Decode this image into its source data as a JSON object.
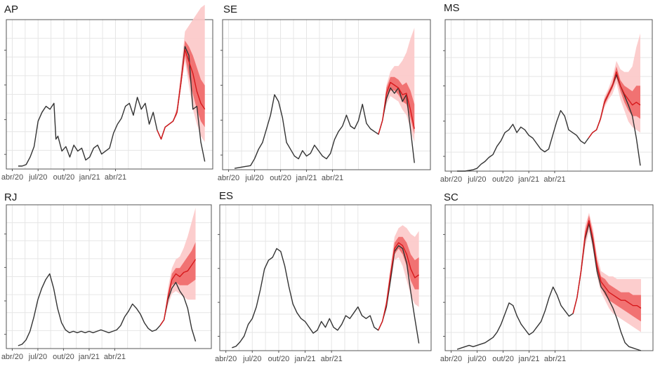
{
  "chart_data": [
    {
      "type": "line",
      "title": "AP",
      "x_ticks": [
        "abr/20",
        "jul/20",
        "out/20",
        "jan/21",
        "abr/21"
      ],
      "observed": {
        "x": [
          0,
          2,
          4,
          6,
          8,
          10,
          12,
          14,
          16,
          18,
          19,
          20,
          22,
          24,
          26,
          28,
          30,
          32,
          34,
          36,
          38,
          40,
          42,
          44,
          46,
          48,
          50,
          52,
          54,
          56,
          58,
          60,
          62,
          64,
          66,
          68,
          70,
          72,
          74,
          76,
          78,
          80,
          82,
          84,
          86,
          88,
          90,
          92,
          94
        ],
        "y": [
          2,
          2,
          3,
          8,
          15,
          32,
          38,
          42,
          40,
          44,
          20,
          22,
          12,
          15,
          8,
          16,
          12,
          14,
          6,
          8,
          14,
          16,
          10,
          12,
          14,
          24,
          30,
          34,
          42,
          44,
          36,
          48,
          40,
          44,
          30,
          38,
          26,
          20,
          28,
          30,
          32,
          38,
          58,
          82,
          76,
          40,
          42,
          18,
          5
        ]
      },
      "nowcast": {
        "x": [
          70,
          72,
          74,
          76,
          78,
          80,
          82,
          84,
          86,
          88,
          90,
          92,
          94
        ],
        "median": [
          26,
          20,
          28,
          30,
          32,
          38,
          58,
          80,
          72,
          64,
          52,
          44,
          40
        ],
        "lower_50": [
          26,
          20,
          28,
          30,
          32,
          38,
          56,
          76,
          62,
          50,
          40,
          32,
          28
        ],
        "upper_50": [
          26,
          20,
          28,
          30,
          32,
          40,
          62,
          86,
          82,
          76,
          68,
          60,
          56
        ],
        "lower_95": [
          26,
          20,
          28,
          30,
          32,
          36,
          54,
          72,
          56,
          40,
          30,
          22,
          18
        ],
        "upper_95": [
          26,
          20,
          28,
          30,
          32,
          42,
          66,
          92,
          96,
          100,
          104,
          108,
          110
        ]
      },
      "ylim": [
        0,
        100
      ]
    },
    {
      "type": "line",
      "title": "SE",
      "x_ticks": [
        "abr/20",
        "jul/20",
        "out/20",
        "jan/21",
        "abr/21"
      ],
      "observed": {
        "x": [
          0,
          4,
          8,
          10,
          12,
          14,
          16,
          18,
          20,
          22,
          24,
          26,
          28,
          30,
          32,
          34,
          36,
          38,
          40,
          42,
          44,
          46,
          48,
          50,
          52,
          54,
          56,
          58,
          60,
          62,
          64,
          66,
          68,
          70,
          72,
          74,
          76,
          78,
          80,
          82,
          84,
          86,
          88,
          90
        ],
        "y": [
          1,
          2,
          3,
          8,
          15,
          20,
          30,
          40,
          55,
          50,
          38,
          20,
          15,
          10,
          8,
          14,
          10,
          12,
          18,
          14,
          10,
          8,
          12,
          22,
          28,
          32,
          40,
          32,
          30,
          36,
          48,
          34,
          30,
          28,
          26,
          36,
          52,
          60,
          56,
          60,
          50,
          55,
          30,
          5
        ]
      },
      "nowcast": {
        "x": [
          72,
          74,
          76,
          78,
          80,
          82,
          84,
          86,
          88,
          90
        ],
        "median": [
          26,
          36,
          56,
          64,
          62,
          60,
          55,
          56,
          44,
          30
        ],
        "lower_50": [
          26,
          36,
          52,
          58,
          58,
          55,
          50,
          48,
          38,
          26
        ],
        "upper_50": [
          26,
          36,
          60,
          68,
          68,
          66,
          62,
          64,
          58,
          48
        ],
        "lower_95": [
          26,
          36,
          48,
          54,
          52,
          50,
          44,
          40,
          30,
          20
        ],
        "upper_95": [
          26,
          36,
          62,
          72,
          76,
          76,
          80,
          86,
          96,
          104
        ]
      },
      "ylim": [
        0,
        110
      ]
    },
    {
      "type": "line",
      "title": "MS",
      "x_ticks": [
        "abr/20",
        "jul/20",
        "out/20",
        "jan/21",
        "abr/21"
      ],
      "observed": {
        "x": [
          0,
          4,
          8,
          10,
          12,
          14,
          16,
          18,
          20,
          22,
          24,
          26,
          28,
          30,
          32,
          34,
          36,
          38,
          40,
          42,
          44,
          46,
          48,
          50,
          52,
          54,
          56,
          58,
          60,
          62,
          64,
          66,
          68,
          70,
          72,
          74,
          76,
          78,
          80,
          82,
          84,
          86,
          88,
          90,
          92
        ],
        "y": [
          0,
          0,
          1,
          2,
          5,
          7,
          10,
          12,
          18,
          22,
          28,
          30,
          34,
          28,
          32,
          30,
          26,
          24,
          20,
          16,
          14,
          16,
          26,
          36,
          44,
          40,
          30,
          28,
          26,
          22,
          20,
          24,
          28,
          30,
          38,
          50,
          56,
          62,
          70,
          62,
          55,
          48,
          40,
          24,
          4
        ]
      },
      "nowcast": {
        "x": [
          66,
          68,
          70,
          72,
          74,
          76,
          78,
          80,
          82,
          84,
          86,
          88,
          90,
          92
        ],
        "median": [
          24,
          28,
          30,
          38,
          50,
          56,
          62,
          72,
          62,
          56,
          52,
          48,
          50,
          48
        ],
        "lower_50": [
          24,
          28,
          30,
          38,
          48,
          54,
          60,
          68,
          58,
          50,
          44,
          40,
          40,
          38
        ],
        "upper_50": [
          24,
          28,
          30,
          38,
          52,
          58,
          64,
          76,
          66,
          62,
          60,
          58,
          62,
          62
        ],
        "lower_95": [
          24,
          28,
          30,
          36,
          46,
          52,
          56,
          64,
          52,
          44,
          36,
          32,
          30,
          28
        ],
        "upper_95": [
          24,
          28,
          30,
          40,
          54,
          60,
          68,
          80,
          74,
          72,
          72,
          76,
          90,
          100
        ]
      },
      "ylim": [
        0,
        110
      ]
    },
    {
      "type": "line",
      "title": "RJ",
      "x_ticks": [
        "abr/20",
        "jul/20",
        "out/20",
        "jan/21",
        "abr/21"
      ],
      "observed": {
        "x": [
          0,
          2,
          4,
          6,
          8,
          10,
          12,
          14,
          16,
          18,
          20,
          22,
          24,
          26,
          28,
          30,
          32,
          34,
          36,
          38,
          40,
          42,
          44,
          46,
          48,
          50,
          52,
          54,
          56,
          58,
          60,
          62,
          64,
          66,
          68,
          70,
          72,
          74,
          76,
          78,
          80,
          82,
          84,
          86,
          88,
          90
        ],
        "y": [
          2,
          3,
          6,
          12,
          22,
          34,
          42,
          48,
          52,
          42,
          28,
          18,
          13,
          11,
          12,
          11,
          12,
          11,
          12,
          11,
          12,
          13,
          12,
          11,
          12,
          13,
          16,
          22,
          26,
          31,
          28,
          24,
          18,
          14,
          12,
          13,
          16,
          20,
          34,
          42,
          46,
          40,
          36,
          28,
          14,
          5
        ]
      },
      "nowcast": {
        "x": [
          72,
          74,
          76,
          78,
          80,
          82,
          84,
          86,
          88,
          90
        ],
        "median": [
          16,
          20,
          36,
          48,
          52,
          50,
          53,
          54,
          58,
          62
        ],
        "lower_50": [
          16,
          20,
          34,
          44,
          46,
          44,
          44,
          44,
          46,
          48
        ],
        "upper_50": [
          16,
          20,
          38,
          52,
          56,
          56,
          60,
          64,
          68,
          74
        ],
        "lower_95": [
          16,
          20,
          30,
          38,
          40,
          38,
          36,
          34,
          34,
          34
        ],
        "upper_95": [
          16,
          20,
          42,
          56,
          62,
          64,
          70,
          78,
          88,
          98
        ]
      },
      "ylim": [
        0,
        100
      ]
    },
    {
      "type": "line",
      "title": "ES",
      "x_ticks": [
        "abr/20",
        "jul/20",
        "out/20",
        "jan/21",
        "abr/21"
      ],
      "observed": {
        "x": [
          0,
          2,
          4,
          6,
          8,
          10,
          12,
          14,
          16,
          18,
          20,
          22,
          24,
          26,
          28,
          30,
          32,
          34,
          36,
          38,
          40,
          42,
          44,
          46,
          48,
          50,
          52,
          54,
          56,
          58,
          60,
          62,
          64,
          66,
          68,
          70,
          72,
          74,
          76,
          78,
          80,
          82,
          84,
          86,
          88,
          90,
          92
        ],
        "y": [
          2,
          3,
          6,
          10,
          18,
          22,
          30,
          42,
          56,
          62,
          64,
          70,
          68,
          58,
          44,
          32,
          26,
          22,
          20,
          16,
          12,
          14,
          20,
          16,
          22,
          16,
          14,
          18,
          24,
          22,
          26,
          30,
          24,
          22,
          24,
          16,
          14,
          20,
          30,
          48,
          68,
          72,
          70,
          60,
          40,
          22,
          5
        ]
      },
      "nowcast": {
        "x": [
          72,
          74,
          76,
          78,
          80,
          82,
          84,
          86,
          88,
          90,
          92
        ],
        "median": [
          14,
          20,
          32,
          52,
          70,
          74,
          72,
          66,
          56,
          50,
          52
        ],
        "lower_50": [
          14,
          20,
          30,
          50,
          66,
          70,
          66,
          58,
          48,
          42,
          42
        ],
        "upper_50": [
          14,
          20,
          34,
          54,
          74,
          78,
          78,
          74,
          66,
          62,
          64
        ],
        "lower_95": [
          14,
          20,
          28,
          46,
          62,
          64,
          58,
          48,
          38,
          32,
          30
        ],
        "upper_95": [
          14,
          20,
          36,
          58,
          78,
          84,
          86,
          84,
          80,
          78,
          82
        ]
      },
      "ylim": [
        0,
        100
      ]
    },
    {
      "type": "line",
      "title": "SC",
      "x_ticks": [
        "abr/20",
        "jul/20",
        "out/20",
        "jan/21",
        "abr/21"
      ],
      "observed": {
        "x": [
          0,
          2,
          4,
          6,
          8,
          10,
          12,
          14,
          16,
          18,
          20,
          22,
          24,
          26,
          28,
          30,
          32,
          34,
          36,
          38,
          40,
          42,
          44,
          46,
          48,
          50,
          52,
          54,
          56,
          58,
          60,
          62,
          64,
          66,
          68,
          70,
          72,
          74,
          76,
          78,
          80,
          82,
          84,
          86,
          88,
          90,
          92
        ],
        "y": [
          1,
          2,
          3,
          4,
          3,
          4,
          5,
          6,
          8,
          10,
          14,
          20,
          28,
          36,
          34,
          26,
          20,
          16,
          12,
          14,
          18,
          22,
          30,
          40,
          48,
          42,
          34,
          30,
          26,
          28,
          40,
          60,
          84,
          96,
          80,
          60,
          48,
          44,
          38,
          32,
          24,
          14,
          6,
          3,
          2,
          1,
          0
        ]
      },
      "nowcast": {
        "x": [
          58,
          60,
          62,
          64,
          66,
          68,
          70,
          72,
          74,
          76,
          78,
          80,
          82,
          84,
          86,
          88,
          90,
          92
        ],
        "median": [
          28,
          40,
          60,
          86,
          98,
          84,
          64,
          52,
          48,
          44,
          42,
          40,
          38,
          38,
          36,
          34,
          34,
          32
        ],
        "lower_50": [
          28,
          40,
          58,
          82,
          94,
          80,
          60,
          48,
          42,
          38,
          36,
          34,
          32,
          30,
          28,
          26,
          24,
          22
        ],
        "upper_50": [
          28,
          40,
          62,
          90,
          102,
          88,
          68,
          56,
          54,
          50,
          48,
          46,
          44,
          44,
          44,
          42,
          42,
          42
        ],
        "lower_95": [
          28,
          40,
          56,
          78,
          90,
          76,
          56,
          44,
          38,
          32,
          28,
          26,
          24,
          22,
          20,
          18,
          16,
          14
        ],
        "upper_95": [
          28,
          40,
          64,
          94,
          104,
          92,
          72,
          60,
          58,
          56,
          56,
          54,
          54,
          54,
          54,
          54,
          54,
          54
        ]
      },
      "ylim": [
        0,
        110
      ]
    }
  ],
  "colors": {
    "observed_line": "#333333",
    "nowcast_line": "#d7191c",
    "band_50": "#f06868",
    "band_95": "#fcc8c8",
    "grid": "#e6e6e6",
    "frame": "#555555"
  }
}
